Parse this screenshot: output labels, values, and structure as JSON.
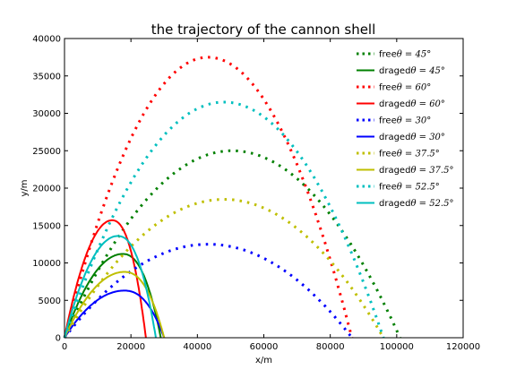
{
  "chart_data": {
    "type": "line",
    "title": "the trajectory of the cannon shell",
    "xlabel": "x/m",
    "ylabel": "y/m",
    "xlim": [
      0,
      120000
    ],
    "ylim": [
      0,
      40000
    ],
    "x_ticks": [
      0,
      20000,
      40000,
      60000,
      80000,
      100000,
      120000
    ],
    "y_ticks": [
      0,
      5000,
      10000,
      15000,
      20000,
      25000,
      30000,
      35000,
      40000
    ],
    "legend_position": "top-right",
    "grid": false,
    "series": [
      {
        "name": "freeθ = 45°",
        "label_prefix": "free",
        "label_math": "θ = 45°",
        "style": "dotted",
        "color": "#008000",
        "range": 101000,
        "max_height": 25000,
        "peak_x": 50500,
        "drag": false
      },
      {
        "name": "dragedθ = 45°",
        "label_prefix": "draged",
        "label_math": "θ = 45°",
        "style": "solid",
        "color": "#008000",
        "range": 29000,
        "max_height": 11200,
        "peak_x": 17500,
        "drag": true
      },
      {
        "name": "freeθ = 60°",
        "label_prefix": "free",
        "label_math": "θ = 60°",
        "style": "dotted",
        "color": "#ff0000",
        "range": 86500,
        "max_height": 37500,
        "peak_x": 43250,
        "drag": false
      },
      {
        "name": "dragedθ = 60°",
        "label_prefix": "draged",
        "label_math": "θ = 60°",
        "style": "solid",
        "color": "#ff0000",
        "range": 24500,
        "max_height": 15700,
        "peak_x": 14300,
        "drag": true
      },
      {
        "name": "freeθ = 30°",
        "label_prefix": "free",
        "label_math": "θ = 30°",
        "style": "dotted",
        "color": "#0000ff",
        "range": 86500,
        "max_height": 12500,
        "peak_x": 43250,
        "drag": false
      },
      {
        "name": "dragedθ = 30°",
        "label_prefix": "draged",
        "label_math": "θ = 30°",
        "style": "solid",
        "color": "#0000ff",
        "range": 30000,
        "max_height": 6300,
        "peak_x": 18000,
        "drag": true
      },
      {
        "name": "freeθ = 37.5°",
        "label_prefix": "free",
        "label_math": "θ = 37.5°",
        "style": "dotted",
        "color": "#bfbf00",
        "range": 96000,
        "max_height": 18500,
        "peak_x": 48000,
        "drag": false
      },
      {
        "name": "dragedθ = 37.5°",
        "label_prefix": "draged",
        "label_math": "θ = 37.5°",
        "style": "solid",
        "color": "#bfbf00",
        "range": 30000,
        "max_height": 8800,
        "peak_x": 18000,
        "drag": true
      },
      {
        "name": "freeθ = 52.5°",
        "label_prefix": "free",
        "label_math": "θ = 52.5°",
        "style": "dotted",
        "color": "#00bfbf",
        "range": 96000,
        "max_height": 31500,
        "peak_x": 48000,
        "drag": false
      },
      {
        "name": "dragedθ = 52.5°",
        "label_prefix": "draged",
        "label_math": "θ = 52.5°",
        "style": "solid",
        "color": "#00bfbf",
        "range": 27500,
        "max_height": 13600,
        "peak_x": 16000,
        "drag": true
      }
    ]
  }
}
